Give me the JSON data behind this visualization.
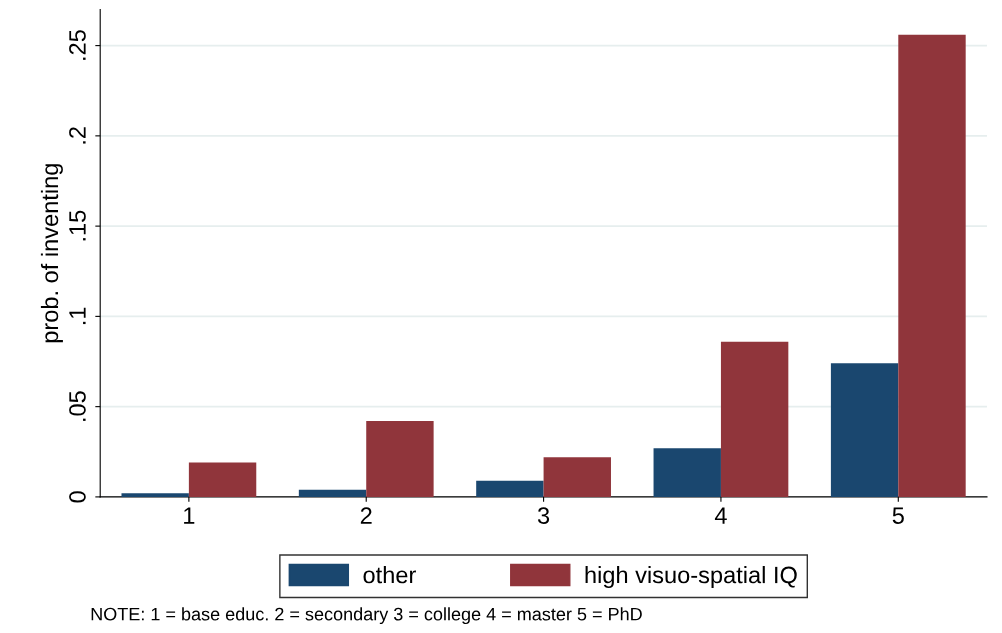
{
  "chart_data": {
    "type": "bar",
    "ylabel": "prob. of inventing",
    "categories": [
      "1",
      "2",
      "3",
      "4",
      "5"
    ],
    "series": [
      {
        "name": "other",
        "color": "#1a476f",
        "values": [
          0.002,
          0.004,
          0.009,
          0.027,
          0.074
        ]
      },
      {
        "name": "high visuo-spatial IQ",
        "color": "#90353b",
        "values": [
          0.019,
          0.042,
          0.022,
          0.086,
          0.256
        ]
      }
    ],
    "ylim": [
      0,
      0.27
    ],
    "yticks": [
      {
        "value": 0,
        "label": "0"
      },
      {
        "value": 0.05,
        "label": ".05"
      },
      {
        "value": 0.1,
        "label": ".1"
      },
      {
        "value": 0.15,
        "label": ".15"
      },
      {
        "value": 0.2,
        "label": ".2"
      },
      {
        "value": 0.25,
        "label": ".25"
      }
    ],
    "grid": "y",
    "legend": "bottom",
    "annotations": [
      "NOTE: 1 = base educ. 2 = secondary 3 = college 4 = master 5 = PhD"
    ]
  }
}
